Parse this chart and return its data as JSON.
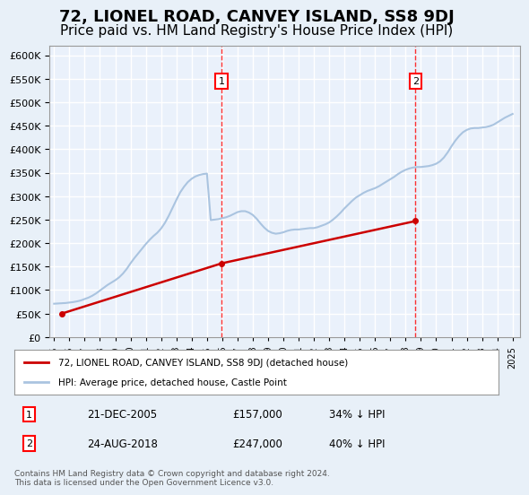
{
  "title": "72, LIONEL ROAD, CANVEY ISLAND, SS8 9DJ",
  "subtitle": "Price paid vs. HM Land Registry's House Price Index (HPI)",
  "title_fontsize": 13,
  "subtitle_fontsize": 11,
  "bg_color": "#e8f0f8",
  "plot_bg_color": "#eaf1fb",
  "grid_color": "#ffffff",
  "ylim": [
    0,
    620000
  ],
  "yticks": [
    0,
    50000,
    100000,
    150000,
    200000,
    250000,
    300000,
    350000,
    400000,
    450000,
    500000,
    550000,
    600000
  ],
  "xlim_start": 1995,
  "xlim_end": 2025.5,
  "xticks": [
    1995,
    1996,
    1997,
    1998,
    1999,
    2000,
    2001,
    2002,
    2003,
    2004,
    2005,
    2006,
    2007,
    2008,
    2009,
    2010,
    2011,
    2012,
    2013,
    2014,
    2015,
    2016,
    2017,
    2018,
    2019,
    2020,
    2021,
    2022,
    2023,
    2024,
    2025
  ],
  "hpi_color": "#aac4e0",
  "price_color": "#cc0000",
  "transaction1_x": 2005.97,
  "transaction1_y": 157000,
  "transaction1_label": "1",
  "transaction1_date": "21-DEC-2005",
  "transaction1_price": "£157,000",
  "transaction1_hpi": "34% ↓ HPI",
  "transaction2_x": 2018.65,
  "transaction2_y": 247000,
  "transaction2_label": "2",
  "transaction2_date": "24-AUG-2018",
  "transaction2_price": "£247,000",
  "transaction2_hpi": "40% ↓ HPI",
  "legend_label_red": "72, LIONEL ROAD, CANVEY ISLAND, SS8 9DJ (detached house)",
  "legend_label_blue": "HPI: Average price, detached house, Castle Point",
  "footnote": "Contains HM Land Registry data © Crown copyright and database right 2024.\nThis data is licensed under the Open Government Licence v3.0.",
  "hpi_data_x": [
    1995.0,
    1995.25,
    1995.5,
    1995.75,
    1996.0,
    1996.25,
    1996.5,
    1996.75,
    1997.0,
    1997.25,
    1997.5,
    1997.75,
    1998.0,
    1998.25,
    1998.5,
    1998.75,
    1999.0,
    1999.25,
    1999.5,
    1999.75,
    2000.0,
    2000.25,
    2000.5,
    2000.75,
    2001.0,
    2001.25,
    2001.5,
    2001.75,
    2002.0,
    2002.25,
    2002.5,
    2002.75,
    2003.0,
    2003.25,
    2003.5,
    2003.75,
    2004.0,
    2004.25,
    2004.5,
    2004.75,
    2005.0,
    2005.25,
    2005.5,
    2005.75,
    2006.0,
    2006.25,
    2006.5,
    2006.75,
    2007.0,
    2007.25,
    2007.5,
    2007.75,
    2008.0,
    2008.25,
    2008.5,
    2008.75,
    2009.0,
    2009.25,
    2009.5,
    2009.75,
    2010.0,
    2010.25,
    2010.5,
    2010.75,
    2011.0,
    2011.25,
    2011.5,
    2011.75,
    2012.0,
    2012.25,
    2012.5,
    2012.75,
    2013.0,
    2013.25,
    2013.5,
    2013.75,
    2014.0,
    2014.25,
    2014.5,
    2014.75,
    2015.0,
    2015.25,
    2015.5,
    2015.75,
    2016.0,
    2016.25,
    2016.5,
    2016.75,
    2017.0,
    2017.25,
    2017.5,
    2017.75,
    2018.0,
    2018.25,
    2018.5,
    2018.75,
    2019.0,
    2019.25,
    2019.5,
    2019.75,
    2020.0,
    2020.25,
    2020.5,
    2020.75,
    2021.0,
    2021.25,
    2021.5,
    2021.75,
    2022.0,
    2022.25,
    2022.5,
    2022.75,
    2023.0,
    2023.25,
    2023.5,
    2023.75,
    2024.0,
    2024.25,
    2024.5,
    2024.75,
    2025.0
  ],
  "hpi_data_y": [
    71000,
    71500,
    72000,
    72500,
    73500,
    74500,
    76000,
    78000,
    81000,
    84000,
    88000,
    93000,
    99000,
    105000,
    111000,
    116000,
    121000,
    127000,
    135000,
    145000,
    157000,
    168000,
    178000,
    188000,
    198000,
    207000,
    215000,
    222000,
    231000,
    243000,
    258000,
    275000,
    292000,
    308000,
    320000,
    330000,
    337000,
    342000,
    345000,
    347000,
    348000,
    249000,
    250000,
    251000,
    253000,
    255000,
    258000,
    262000,
    266000,
    268000,
    268000,
    265000,
    260000,
    252000,
    242000,
    233000,
    226000,
    222000,
    220000,
    221000,
    223000,
    226000,
    228000,
    229000,
    229000,
    230000,
    231000,
    232000,
    232000,
    234000,
    237000,
    240000,
    244000,
    250000,
    257000,
    265000,
    274000,
    282000,
    290000,
    297000,
    302000,
    307000,
    311000,
    314000,
    317000,
    321000,
    326000,
    331000,
    336000,
    341000,
    347000,
    352000,
    356000,
    359000,
    361000,
    362000,
    362000,
    363000,
    364000,
    366000,
    369000,
    374000,
    382000,
    393000,
    406000,
    418000,
    428000,
    436000,
    441000,
    444000,
    445000,
    445000,
    446000,
    447000,
    449000,
    452000,
    457000,
    462000,
    467000,
    471000,
    475000
  ],
  "price_data_x": [
    1995.5,
    2005.97,
    2018.65
  ],
  "price_data_y": [
    50000,
    157000,
    247000
  ]
}
